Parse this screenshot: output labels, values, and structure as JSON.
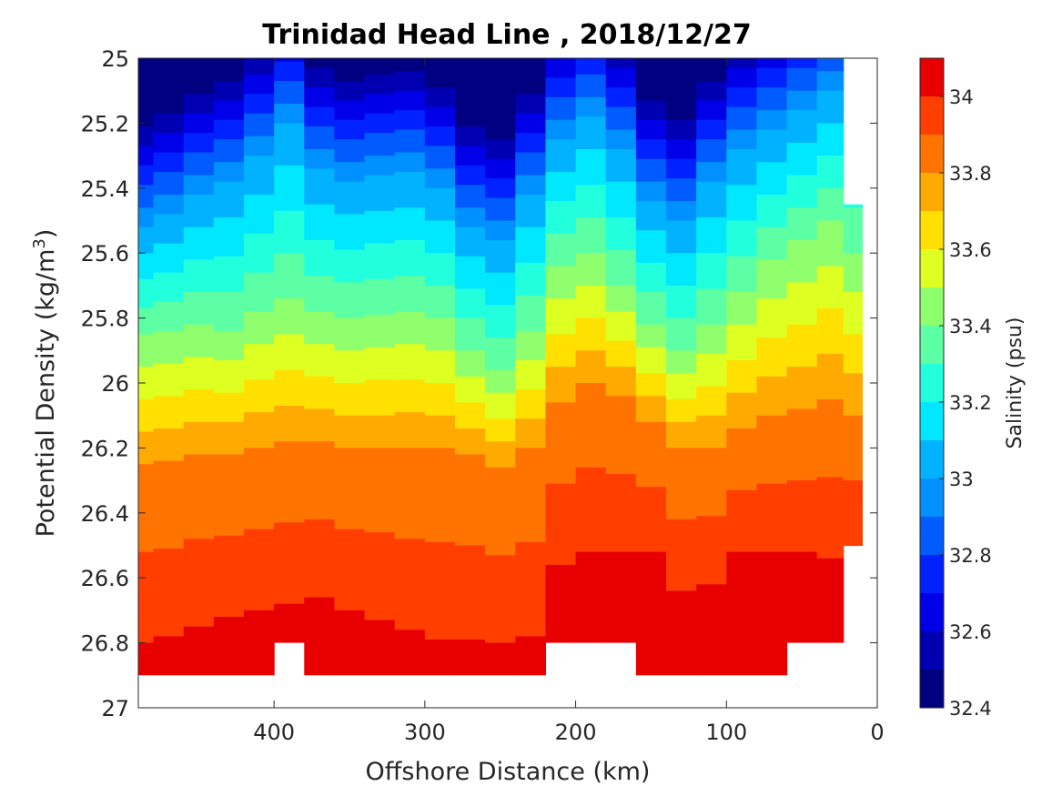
{
  "chart_data": {
    "type": "heatmap",
    "subtype": "filled-contour",
    "title": "Trinidad Head Line , 2018/12/27",
    "xlabel": "Offshore Distance (km)",
    "ylabel_main": "Potential Density (kg/m",
    "ylabel_sup": "3",
    "ylabel_end": ")",
    "xlim": [
      490,
      0
    ],
    "ylim": [
      25,
      27
    ],
    "x_reversed": true,
    "y_reversed": true,
    "xticks": [
      400,
      300,
      200,
      100,
      0
    ],
    "xtick_labels": [
      "400",
      "300",
      "200",
      "100",
      "0"
    ],
    "yticks": [
      25,
      25.2,
      25.4,
      25.6,
      25.8,
      26,
      26.2,
      26.4,
      26.6,
      26.8,
      27
    ],
    "ytick_labels": [
      "25",
      "25.2",
      "25.4",
      "25.6",
      "25.8",
      "26",
      "26.2",
      "26.4",
      "26.6",
      "26.8",
      "27"
    ],
    "colorbar": {
      "label": "Salinity (psu)",
      "range": [
        32.4,
        34.1
      ],
      "ticks": [
        32.4,
        32.6,
        32.8,
        33,
        33.2,
        33.4,
        33.6,
        33.8,
        34
      ],
      "tick_labels": [
        "32.4",
        "32.6",
        "32.8",
        "33",
        "33.2",
        "33.4",
        "33.6",
        "33.8",
        "34"
      ],
      "levels": [
        32.4,
        32.5,
        32.6,
        32.7,
        32.8,
        32.9,
        33.0,
        33.1,
        33.2,
        33.3,
        33.4,
        33.5,
        33.6,
        33.7,
        33.8,
        33.9,
        34.0,
        34.1
      ],
      "colors": [
        "#000080",
        "#0000b2",
        "#0000e8",
        "#0022ff",
        "#005cff",
        "#0090ff",
        "#00b2ff",
        "#00e8ff",
        "#22ffdd",
        "#5cffa3",
        "#90ff6e",
        "#ddff22",
        "#ffe000",
        "#ffaa00",
        "#ff7400",
        "#ff3e00",
        "#e80000",
        "#b00000"
      ]
    },
    "grid": false,
    "x_grid": [
      490,
      470,
      450,
      430,
      410,
      390,
      370,
      350,
      330,
      310,
      290,
      270,
      250,
      230,
      210,
      190,
      170,
      150,
      130,
      110,
      90,
      70,
      50,
      30,
      15
    ],
    "bottom_density": [
      26.9,
      26.9,
      26.9,
      26.9,
      26.9,
      26.8,
      26.9,
      26.9,
      26.9,
      26.9,
      26.9,
      26.9,
      26.9,
      26.9,
      26.8,
      26.8,
      26.8,
      26.9,
      26.9,
      26.9,
      26.9,
      26.9,
      26.8,
      26.8,
      26.5
    ],
    "top_density": [
      25,
      25,
      25,
      25,
      25,
      25,
      25,
      25,
      25,
      25,
      25,
      25,
      25,
      25,
      25,
      25,
      25,
      25,
      25,
      25,
      25,
      25,
      25,
      25,
      25.45
    ],
    "isopycnal_salinity": [
      {
        "level": 33.0,
        "density": [
          25.52,
          25.48,
          25.42,
          25.38,
          25.3,
          25.2,
          25.34,
          25.38,
          25.36,
          25.35,
          25.4,
          25.52,
          25.56,
          25.42,
          25.25,
          25.18,
          25.28,
          25.44,
          25.5,
          25.38,
          25.28,
          25.22,
          25.16,
          25.1,
          25.05
        ]
      },
      {
        "level": 33.4,
        "density": [
          25.85,
          25.84,
          25.82,
          25.84,
          25.78,
          25.74,
          25.78,
          25.8,
          25.79,
          25.78,
          25.8,
          25.9,
          25.96,
          25.84,
          25.64,
          25.6,
          25.7,
          25.82,
          25.9,
          25.82,
          25.72,
          25.62,
          25.56,
          25.5,
          25.6
        ]
      },
      {
        "level": 33.8,
        "density": [
          26.25,
          26.24,
          26.22,
          26.22,
          26.2,
          26.18,
          26.18,
          26.2,
          26.2,
          26.2,
          26.2,
          26.22,
          26.26,
          26.2,
          26.06,
          26.0,
          26.04,
          26.12,
          26.2,
          26.2,
          26.14,
          26.1,
          26.08,
          26.05,
          26.1
        ]
      },
      {
        "level": 34.0,
        "density": [
          26.8,
          26.78,
          26.75,
          26.72,
          26.7,
          26.68,
          26.66,
          26.7,
          26.73,
          26.76,
          26.79,
          26.79,
          26.8,
          26.78,
          26.56,
          26.52,
          26.52,
          26.52,
          26.64,
          26.62,
          26.52,
          26.52,
          26.52,
          26.54,
          26.5
        ]
      }
    ]
  }
}
